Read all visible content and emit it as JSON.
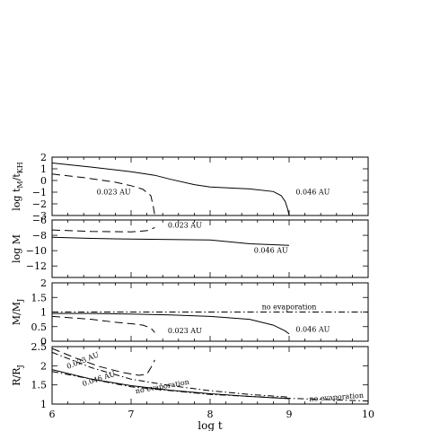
{
  "chart_data": [
    {
      "type": "line",
      "ylabel_main": "log t",
      "ylabel_sub": "M",
      "ylabel_slash": "/",
      "ylabel_main2": "t",
      "ylabel_sub2": "KH",
      "xlim": [
        6,
        10
      ],
      "ylim": [
        -3,
        2
      ],
      "yticks": [
        "2",
        "1",
        "0",
        "−1",
        "−2",
        "−3"
      ],
      "grid": false,
      "series": [
        {
          "name": "0.046 AU",
          "style": "solid",
          "x": [
            6.0,
            6.5,
            7.0,
            7.3,
            7.5,
            7.8,
            8.0,
            8.2,
            8.5,
            8.8,
            8.9,
            8.95,
            8.98,
            9.0
          ],
          "y": [
            1.5,
            1.15,
            0.75,
            0.45,
            0.1,
            -0.35,
            -0.55,
            -0.62,
            -0.72,
            -0.95,
            -1.3,
            -1.8,
            -2.4,
            -3.0
          ]
        },
        {
          "name": "0.023 AU",
          "style": "dashed",
          "x": [
            6.0,
            6.4,
            6.8,
            7.0,
            7.15,
            7.25,
            7.28,
            7.3
          ],
          "y": [
            0.55,
            0.25,
            -0.15,
            -0.45,
            -0.75,
            -1.3,
            -2.2,
            -3.0
          ]
        }
      ],
      "annotations": [
        {
          "text": "0.023 AU",
          "x": 6.78,
          "y": -1.2
        },
        {
          "text": "0.046 AU",
          "x": 9.3,
          "y": -1.2
        }
      ]
    },
    {
      "type": "line",
      "ylabel": "log M",
      "xlim": [
        6,
        10
      ],
      "ylim": [
        -13.5,
        -6
      ],
      "yticks": [
        "−6",
        "−8",
        "−10",
        "−12"
      ],
      "grid": false,
      "series": [
        {
          "name": "0.023 AU",
          "style": "dashed",
          "x": [
            6.0,
            6.5,
            7.0,
            7.2,
            7.3
          ],
          "y": [
            -7.3,
            -7.5,
            -7.55,
            -7.4,
            -7.0
          ]
        },
        {
          "name": "0.046 AU",
          "style": "solid",
          "x": [
            6.0,
            6.5,
            7.0,
            7.5,
            8.0,
            8.5,
            9.0
          ],
          "y": [
            -8.25,
            -8.4,
            -8.5,
            -8.55,
            -8.6,
            -9.1,
            -9.3
          ]
        }
      ],
      "annotations": [
        {
          "text": "0.023 AU",
          "x": 7.68,
          "y": -7.0
        },
        {
          "text": "0.046 AU",
          "x": 8.77,
          "y": -10.3
        }
      ]
    },
    {
      "type": "line",
      "ylabel_main": "M/M",
      "ylabel_sub": "J",
      "xlim": [
        6,
        10
      ],
      "ylim": [
        0,
        2
      ],
      "yticks": [
        "2",
        "1.5",
        "1",
        "0.5",
        "0"
      ],
      "grid": false,
      "series": [
        {
          "name": "no evaporation",
          "style": "dashdot",
          "x": [
            6.0,
            10.0
          ],
          "y": [
            1.0,
            1.0
          ]
        },
        {
          "name": "0.046 AU",
          "style": "solid",
          "x": [
            6.0,
            6.5,
            7.0,
            7.5,
            8.0,
            8.5,
            8.8,
            8.95,
            9.0
          ],
          "y": [
            0.95,
            0.95,
            0.93,
            0.9,
            0.85,
            0.75,
            0.55,
            0.35,
            0.25
          ]
        },
        {
          "name": "0.023 AU",
          "style": "dashed",
          "x": [
            6.0,
            6.5,
            6.8,
            7.0,
            7.15,
            7.25,
            7.3
          ],
          "y": [
            0.85,
            0.75,
            0.65,
            0.6,
            0.55,
            0.45,
            0.3
          ]
        }
      ],
      "annotations": [
        {
          "text": "no evaporation",
          "x": 9.0,
          "y": 1.1
        },
        {
          "text": "0.023 AU",
          "x": 7.68,
          "y": 0.28
        },
        {
          "text": "0.046 AU",
          "x": 9.3,
          "y": 0.33
        }
      ]
    },
    {
      "type": "line",
      "ylabel_main": "R/R",
      "ylabel_sub": "J",
      "xlabel": "log t",
      "xlim": [
        6,
        10
      ],
      "ylim": [
        1,
        2.5
      ],
      "yticks": [
        "2.5",
        "2",
        "1.5",
        "1"
      ],
      "xticks": [
        "6",
        "7",
        "8",
        "9",
        "10"
      ],
      "grid": false,
      "series": [
        {
          "name": "0.023 AU",
          "style": "dashed",
          "x": [
            6.0,
            6.3,
            6.6,
            6.9,
            7.1,
            7.2,
            7.25,
            7.3
          ],
          "y": [
            2.45,
            2.2,
            1.98,
            1.82,
            1.75,
            1.78,
            1.95,
            2.15
          ]
        },
        {
          "name": "no evaporation (0.023 AU)",
          "style": "dashdot",
          "x": [
            6.0,
            6.5,
            7.0,
            7.5,
            8.0,
            8.5,
            9.0
          ],
          "y": [
            2.35,
            1.95,
            1.65,
            1.48,
            1.35,
            1.25,
            1.18
          ]
        },
        {
          "name": "0.046 AU",
          "style": "solid",
          "x": [
            6.0,
            6.5,
            7.0,
            7.5,
            8.0,
            8.5,
            9.0
          ],
          "y": [
            1.9,
            1.65,
            1.48,
            1.36,
            1.27,
            1.2,
            1.14
          ]
        },
        {
          "name": "no evaporation (0.046 AU)",
          "style": "dashdot",
          "x": [
            6.0,
            7.0,
            8.0,
            9.0,
            10.0
          ],
          "y": [
            1.85,
            1.45,
            1.25,
            1.15,
            1.08
          ]
        }
      ],
      "annotations": [
        {
          "text": "0.023 AU",
          "x": 6.4,
          "y": 2.08,
          "angle": -22
        },
        {
          "text": "0.046 AU",
          "x": 6.6,
          "y": 1.6,
          "angle": -18
        },
        {
          "text": "no evaporation",
          "x": 7.4,
          "y": 1.4,
          "angle": -10
        },
        {
          "text": "no evaporation",
          "x": 9.6,
          "y": 1.12,
          "angle": -4
        }
      ]
    }
  ]
}
